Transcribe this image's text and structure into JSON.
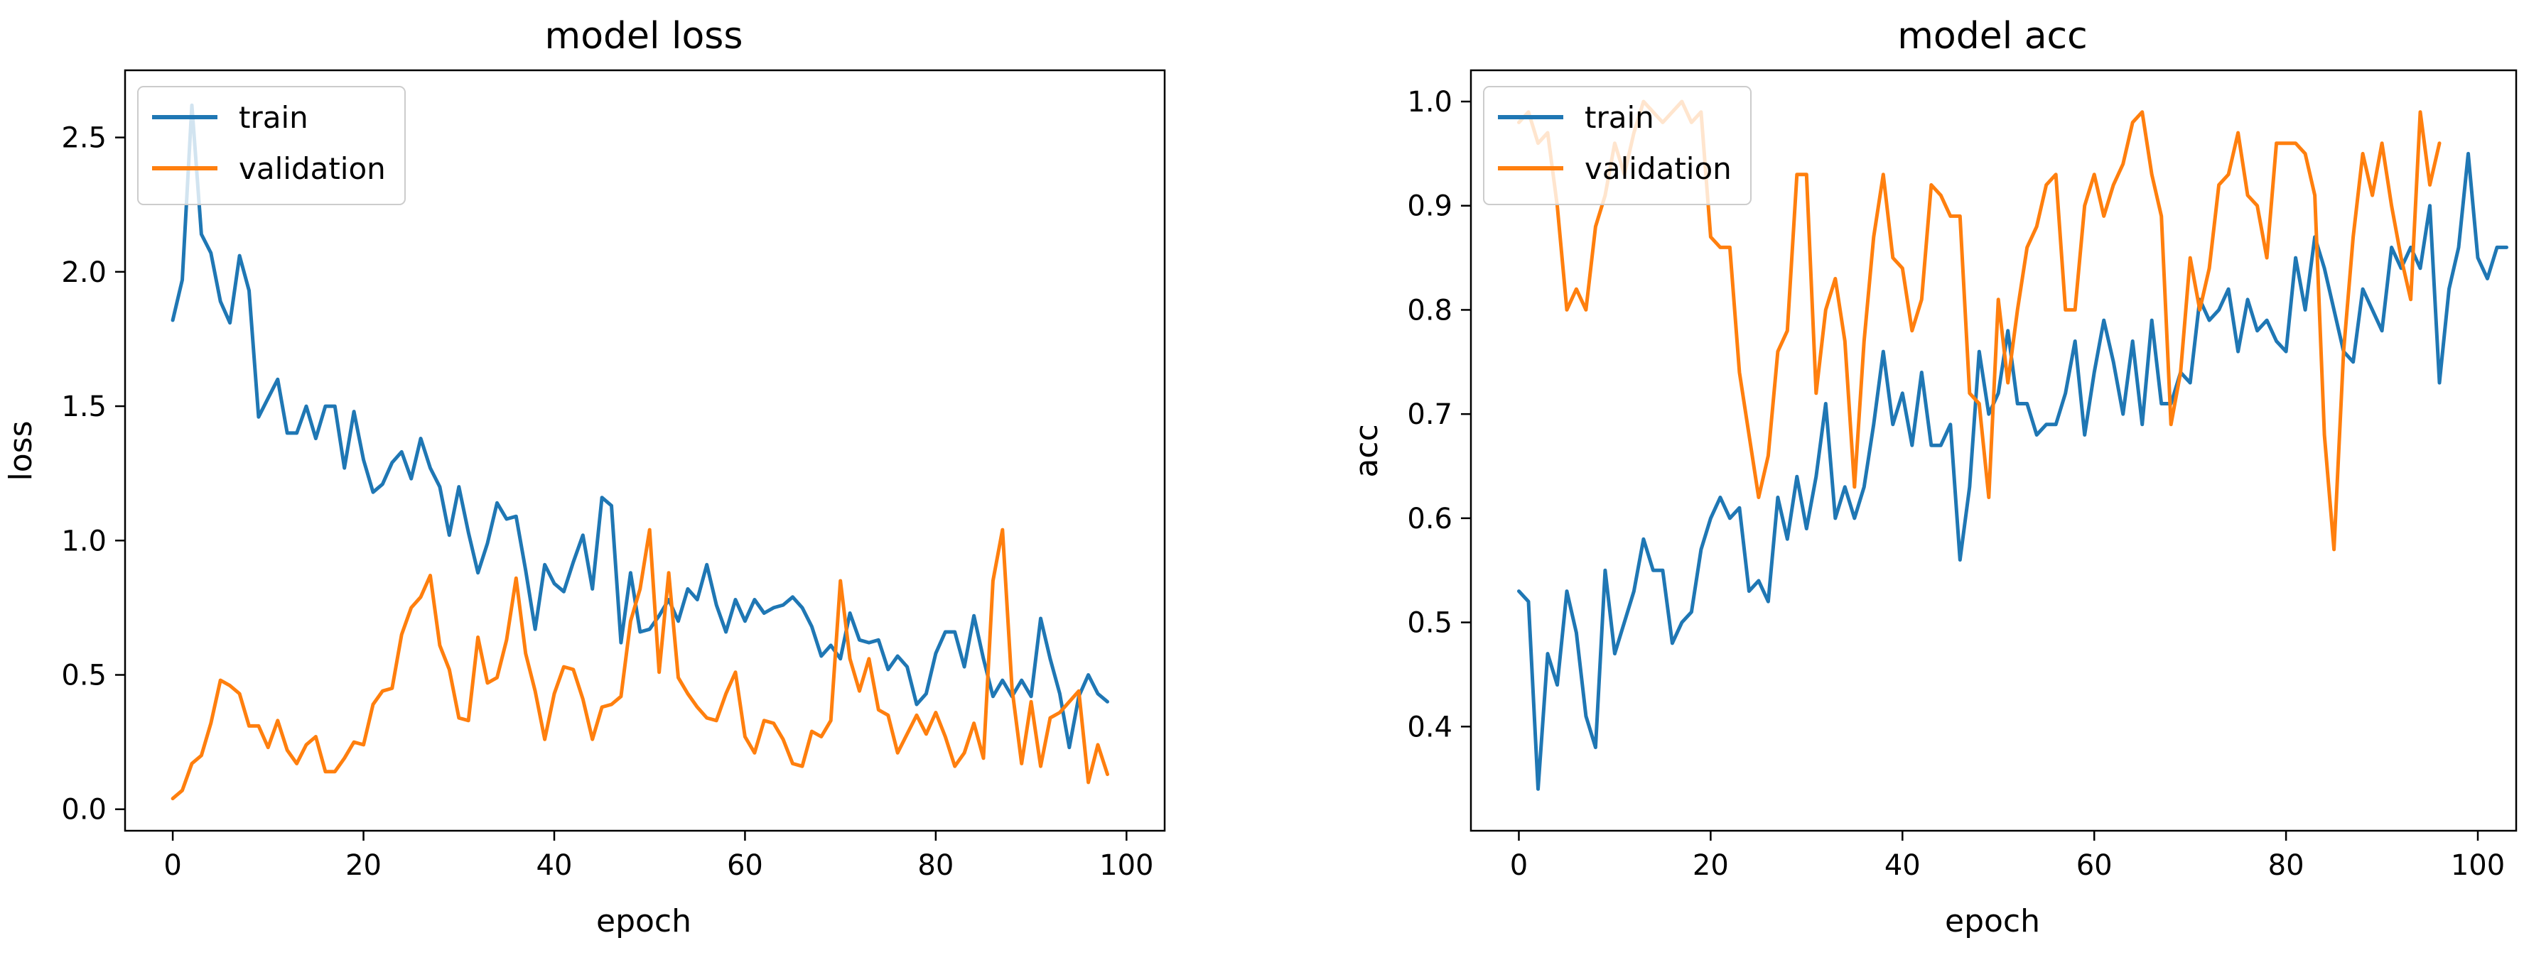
{
  "figure": {
    "colors": {
      "train": "#1f77b4",
      "validation": "#ff7f0e",
      "axes": "#000000",
      "legend_border": "#cccccc"
    }
  },
  "chart_data": [
    {
      "type": "line",
      "title": "model loss",
      "xlabel": "epoch",
      "ylabel": "loss",
      "xlim": [
        -5,
        104
      ],
      "ylim": [
        -0.08,
        2.75
      ],
      "xticks": [
        0,
        20,
        40,
        60,
        80,
        100
      ],
      "yticks": [
        0.0,
        0.5,
        1.0,
        1.5,
        2.0,
        2.5
      ],
      "xtick_labels": [
        "0",
        "20",
        "40",
        "60",
        "80",
        "100"
      ],
      "ytick_labels": [
        "0.0",
        "0.5",
        "1.0",
        "1.5",
        "2.0",
        "2.5"
      ],
      "legend": {
        "location": "upper-left",
        "entries": [
          "train",
          "validation"
        ]
      },
      "series": [
        {
          "name": "train",
          "color": "#1f77b4",
          "x_start": 0,
          "values": [
            1.82,
            1.97,
            2.62,
            2.14,
            2.07,
            1.89,
            1.81,
            2.06,
            1.93,
            1.46,
            1.53,
            1.6,
            1.4,
            1.4,
            1.5,
            1.38,
            1.5,
            1.5,
            1.27,
            1.48,
            1.3,
            1.18,
            1.21,
            1.29,
            1.33,
            1.23,
            1.38,
            1.27,
            1.2,
            1.02,
            1.2,
            1.03,
            0.88,
            0.99,
            1.14,
            1.08,
            1.09,
            0.89,
            0.67,
            0.91,
            0.84,
            0.81,
            0.92,
            1.02,
            0.82,
            1.16,
            1.13,
            0.62,
            0.88,
            0.66,
            0.67,
            0.72,
            0.78,
            0.7,
            0.82,
            0.78,
            0.91,
            0.76,
            0.66,
            0.78,
            0.7,
            0.78,
            0.73,
            0.75,
            0.76,
            0.79,
            0.75,
            0.68,
            0.57,
            0.61,
            0.56,
            0.73,
            0.63,
            0.62,
            0.63,
            0.52,
            0.57,
            0.53,
            0.39,
            0.43,
            0.58,
            0.66,
            0.66,
            0.53,
            0.72,
            0.56,
            0.42,
            0.48,
            0.42,
            0.48,
            0.42,
            0.71,
            0.56,
            0.43,
            0.23,
            0.42,
            0.5,
            0.43,
            0.4
          ]
        },
        {
          "name": "validation",
          "color": "#ff7f0e",
          "x_start": 0,
          "values": [
            0.04,
            0.07,
            0.17,
            0.2,
            0.32,
            0.48,
            0.46,
            0.43,
            0.31,
            0.31,
            0.23,
            0.33,
            0.22,
            0.17,
            0.24,
            0.27,
            0.14,
            0.14,
            0.19,
            0.25,
            0.24,
            0.39,
            0.44,
            0.45,
            0.65,
            0.75,
            0.79,
            0.87,
            0.61,
            0.52,
            0.34,
            0.33,
            0.64,
            0.47,
            0.49,
            0.63,
            0.86,
            0.58,
            0.44,
            0.26,
            0.43,
            0.53,
            0.52,
            0.41,
            0.26,
            0.38,
            0.39,
            0.42,
            0.7,
            0.82,
            1.04,
            0.51,
            0.88,
            0.49,
            0.43,
            0.38,
            0.34,
            0.33,
            0.43,
            0.51,
            0.27,
            0.21,
            0.33,
            0.32,
            0.26,
            0.17,
            0.16,
            0.29,
            0.27,
            0.33,
            0.85,
            0.56,
            0.44,
            0.56,
            0.37,
            0.35,
            0.21,
            0.28,
            0.35,
            0.28,
            0.36,
            0.27,
            0.16,
            0.21,
            0.32,
            0.19,
            0.85,
            1.04,
            0.45,
            0.17,
            0.4,
            0.16,
            0.34,
            0.36,
            0.4,
            0.44,
            0.1,
            0.24,
            0.13
          ]
        }
      ]
    },
    {
      "type": "line",
      "title": "model acc",
      "xlabel": "epoch",
      "ylabel": "acc",
      "xlim": [
        -5,
        104
      ],
      "ylim": [
        0.3,
        1.03
      ],
      "xticks": [
        0,
        20,
        40,
        60,
        80,
        100
      ],
      "yticks": [
        0.4,
        0.5,
        0.6,
        0.7,
        0.8,
        0.9,
        1.0
      ],
      "xtick_labels": [
        "0",
        "20",
        "40",
        "60",
        "80",
        "100"
      ],
      "ytick_labels": [
        "0.4",
        "0.5",
        "0.6",
        "0.7",
        "0.8",
        "0.9",
        "1.0"
      ],
      "legend": {
        "location": "upper-left",
        "entries": [
          "train",
          "validation"
        ]
      },
      "series": [
        {
          "name": "train",
          "color": "#1f77b4",
          "x_start": 0,
          "values": [
            0.53,
            0.52,
            0.34,
            0.47,
            0.44,
            0.53,
            0.49,
            0.41,
            0.38,
            0.55,
            0.47,
            0.5,
            0.53,
            0.58,
            0.55,
            0.55,
            0.48,
            0.5,
            0.51,
            0.57,
            0.6,
            0.62,
            0.6,
            0.61,
            0.53,
            0.54,
            0.52,
            0.62,
            0.58,
            0.64,
            0.59,
            0.64,
            0.71,
            0.6,
            0.63,
            0.6,
            0.63,
            0.69,
            0.76,
            0.69,
            0.72,
            0.67,
            0.74,
            0.67,
            0.67,
            0.69,
            0.56,
            0.63,
            0.76,
            0.7,
            0.72,
            0.78,
            0.71,
            0.71,
            0.68,
            0.69,
            0.69,
            0.72,
            0.77,
            0.68,
            0.74,
            0.79,
            0.75,
            0.7,
            0.77,
            0.69,
            0.79,
            0.71,
            0.71,
            0.74,
            0.73,
            0.81,
            0.79,
            0.8,
            0.82,
            0.76,
            0.81,
            0.78,
            0.79,
            0.77,
            0.76,
            0.85,
            0.8,
            0.87,
            0.84,
            0.8,
            0.76,
            0.75,
            0.82,
            0.8,
            0.78,
            0.86,
            0.84,
            0.86,
            0.84,
            0.9,
            0.73,
            0.82,
            0.86,
            0.95,
            0.85,
            0.83,
            0.86,
            0.86
          ]
        },
        {
          "name": "validation",
          "color": "#ff7f0e",
          "x_start": 0,
          "values": [
            0.98,
            0.99,
            0.96,
            0.97,
            0.9,
            0.8,
            0.82,
            0.8,
            0.88,
            0.91,
            0.96,
            0.93,
            0.97,
            1.0,
            0.99,
            0.98,
            0.99,
            1.0,
            0.98,
            0.99,
            0.87,
            0.86,
            0.86,
            0.74,
            0.68,
            0.62,
            0.66,
            0.76,
            0.78,
            0.93,
            0.93,
            0.72,
            0.8,
            0.83,
            0.77,
            0.63,
            0.77,
            0.87,
            0.93,
            0.85,
            0.84,
            0.78,
            0.81,
            0.92,
            0.91,
            0.89,
            0.89,
            0.72,
            0.71,
            0.62,
            0.81,
            0.73,
            0.8,
            0.86,
            0.88,
            0.92,
            0.93,
            0.8,
            0.8,
            0.9,
            0.93,
            0.89,
            0.92,
            0.94,
            0.98,
            0.99,
            0.93,
            0.89,
            0.69,
            0.74,
            0.85,
            0.8,
            0.84,
            0.92,
            0.93,
            0.97,
            0.91,
            0.9,
            0.85,
            0.96,
            0.96,
            0.96,
            0.95,
            0.91,
            0.68,
            0.57,
            0.76,
            0.87,
            0.95,
            0.91,
            0.96,
            0.9,
            0.85,
            0.81,
            0.99,
            0.92,
            0.96
          ]
        }
      ]
    }
  ]
}
